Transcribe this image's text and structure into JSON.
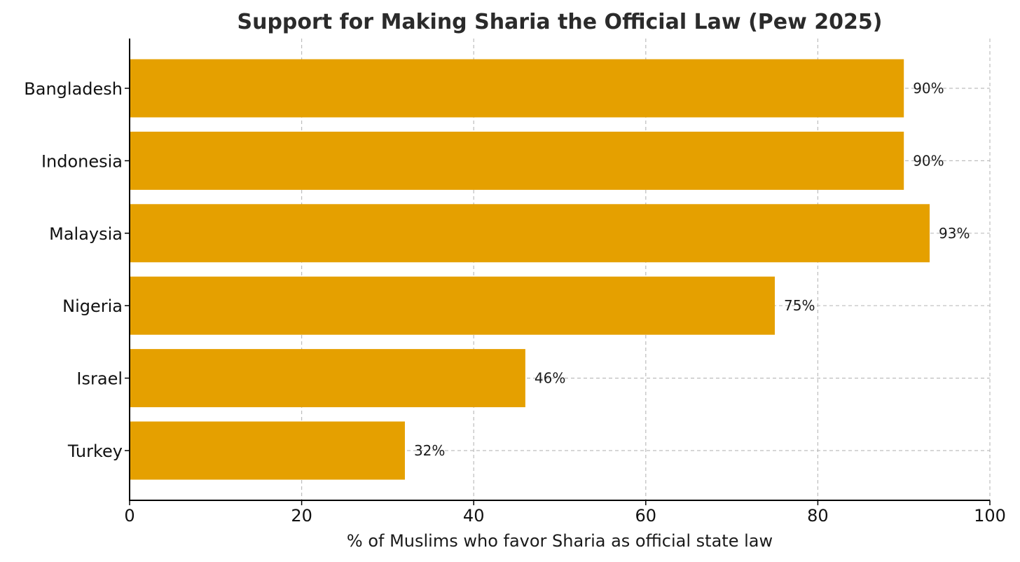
{
  "chart_data": {
    "type": "bar",
    "orientation": "horizontal",
    "title": "Support for Making Sharia the Official Law (Pew 2025)",
    "xlabel": "% of Muslims who favor Sharia as official state law",
    "ylabel": "",
    "xlim": [
      0,
      100
    ],
    "x_ticks": [
      0,
      20,
      40,
      60,
      80,
      100
    ],
    "x_tick_labels": [
      "0",
      "20",
      "40",
      "60",
      "80",
      "100"
    ],
    "categories": [
      "Bangladesh",
      "Indonesia",
      "Malaysia",
      "Nigeria",
      "Israel",
      "Turkey"
    ],
    "values": [
      90,
      90,
      93,
      75,
      46,
      32
    ],
    "data_labels": [
      "90%",
      "90%",
      "93%",
      "75%",
      "46%",
      "32%"
    ],
    "bar_color": "#e5a000",
    "grid": true,
    "legend": "none"
  }
}
